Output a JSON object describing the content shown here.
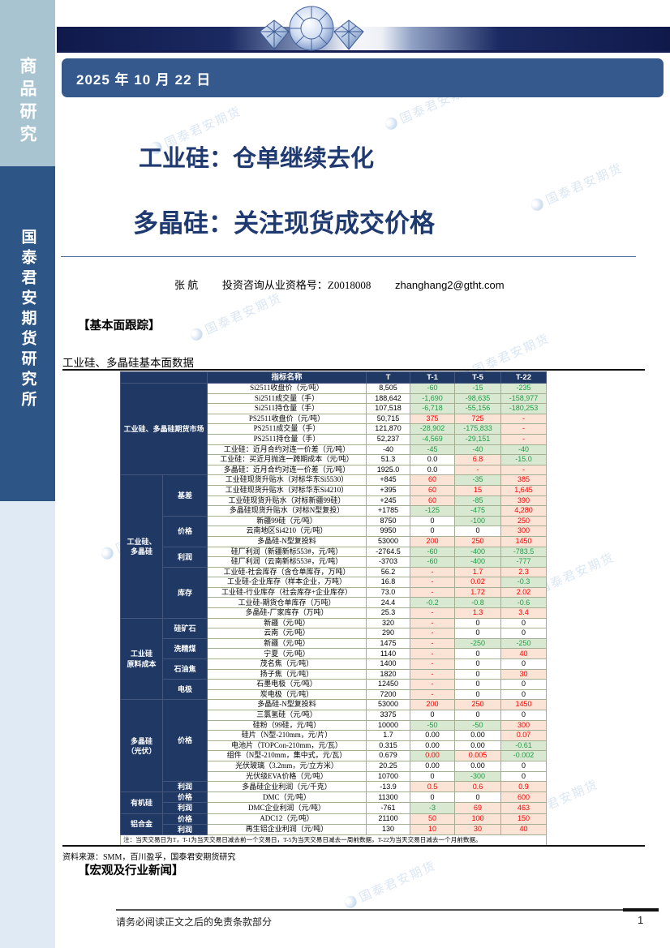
{
  "sidebar": {
    "top_label": "商品研究",
    "bottom_label": "国泰君安期货研究所"
  },
  "header": {
    "date": "2025 年 10 月 22 日"
  },
  "titles": {
    "title1": "工业硅：仓单继续去化",
    "title2": "多晶硅：关注现货成交价格"
  },
  "author": {
    "name": "张  航",
    "qualification": "投资咨询从业资格号：Z0018008",
    "email": "zhanghang2@gtht.com"
  },
  "sections": {
    "fundamentals": "【基本面跟踪】",
    "news": "【宏观及行业新闻】"
  },
  "watermark": {
    "text": "国泰君安期货"
  },
  "colors": {
    "navy": "#1f3864",
    "green_bg": "#d9e8d1",
    "green_text": "#1f9e48",
    "pink_bg": "#fbe3d5",
    "red_text": "#fe0000",
    "date_bar": "#35598d"
  },
  "table": {
    "title": "工业硅、多晶硅基本面数据",
    "headers": [
      "指标名称",
      "T",
      "T-1",
      "T-5",
      "T-22"
    ],
    "groups": [
      {
        "label": "工业硅、多晶硅期货市场",
        "merged": true,
        "subgroups": [
          {
            "label": "",
            "rows": [
              [
                "Si2511收盘价（元/吨）",
                "8,505",
                "-60",
                "g",
                "-15",
                "g",
                "-235",
                "g"
              ],
              [
                "Si2511成交量（手）",
                "188,642",
                "-1,690",
                "g",
                "-98,635",
                "g",
                "-158,977",
                "g"
              ],
              [
                "Si2511持仓量（手）",
                "107,518",
                "-6,718",
                "g",
                "-55,156",
                "g",
                "-180,253",
                "g"
              ],
              [
                "PS2511收盘价（元/吨）",
                "50,715",
                "375",
                "r",
                "725",
                "r",
                "-",
                "r"
              ],
              [
                "PS2511成交量（手）",
                "121,870",
                "-28,902",
                "g",
                "-175,833",
                "g",
                "-",
                "r"
              ],
              [
                "PS2511持仓量（手）",
                "52,237",
                "-4,569",
                "g",
                "-29,151",
                "g",
                "-",
                "r"
              ],
              [
                "工业硅：近月合约对连一价差（元/吨）",
                "-40",
                "-45",
                "g",
                "-40",
                "g",
                "-40",
                "g"
              ],
              [
                "工业硅：买近月抛连一跨期成本（元/吨）",
                "51.3",
                "0.0",
                "n",
                "6.8",
                "r",
                "-15.0",
                "g"
              ],
              [
                "多晶硅：近月合约对连一价差（元/吨）",
                "1925.0",
                "0.0",
                "n",
                "-",
                "r",
                "-",
                "r"
              ]
            ]
          }
        ]
      },
      {
        "label": "工业硅、\n多晶硅",
        "merged": false,
        "subgroups": [
          {
            "label": "基差",
            "rows": [
              [
                "工业硅现货升贴水（对标华东Si5530）",
                "+845",
                "60",
                "r",
                "-35",
                "g",
                "385",
                "r"
              ],
              [
                "工业硅现货升贴水（对标华东Si4210）",
                "+395",
                "60",
                "r",
                "15",
                "r",
                "1,645",
                "r"
              ],
              [
                "工业硅现货升贴水（对标新疆99硅）",
                "+245",
                "60",
                "r",
                "-85",
                "g",
                "390",
                "r"
              ],
              [
                "多晶硅现货升贴水（对标N型复投）",
                "+1785",
                "-125",
                "g",
                "-475",
                "g",
                "4,280",
                "r"
              ]
            ]
          },
          {
            "label": "价格",
            "rows": [
              [
                "新疆99硅（元/吨）",
                "8750",
                "0",
                "n",
                "-100",
                "g",
                "250",
                "r"
              ],
              [
                "云南地区Si4210（元/吨）",
                "9950",
                "0",
                "n",
                "0",
                "n",
                "300",
                "r"
              ],
              [
                "多晶硅-N型复投料",
                "53000",
                "200",
                "r",
                "250",
                "r",
                "1450",
                "r"
              ]
            ]
          },
          {
            "label": "利润",
            "rows": [
              [
                "硅厂利润（新疆新标553#，元/吨）",
                "-2764.5",
                "-60",
                "g",
                "-400",
                "g",
                "-783.5",
                "g"
              ],
              [
                "硅厂利润（云南新标553#，元/吨）",
                "-3703",
                "-60",
                "g",
                "-400",
                "g",
                "-777",
                "g"
              ]
            ]
          },
          {
            "label": "库存",
            "rows": [
              [
                "工业硅-社会库存（含仓单库存，万吨）",
                "56.2",
                "-",
                "r",
                "1.7",
                "r",
                "2.3",
                "r"
              ],
              [
                "工业硅-企业库存（样本企业，万吨）",
                "16.8",
                "-",
                "r",
                "0.02",
                "r",
                "-0.3",
                "g"
              ],
              [
                "工业硅-行业库存（社会库存+企业库存）",
                "73.0",
                "-",
                "r",
                "1.72",
                "r",
                "2.02",
                "r"
              ],
              [
                "工业硅-期货仓单库存（万吨）",
                "24.4",
                "-0.2",
                "g",
                "-0.8",
                "g",
                "-0.6",
                "g"
              ],
              [
                "多晶硅-厂家库存（万吨）",
                "25.3",
                "-",
                "r",
                "1.3",
                "r",
                "3.4",
                "r"
              ]
            ]
          }
        ]
      },
      {
        "label": "工业硅\n原料成本",
        "merged": false,
        "subgroups": [
          {
            "label": "硅矿石",
            "rows": [
              [
                "新疆（元/吨）",
                "320",
                "-",
                "r",
                "0",
                "n",
                "0",
                "n"
              ],
              [
                "云南（元/吨）",
                "290",
                "-",
                "r",
                "0",
                "n",
                "0",
                "n"
              ]
            ]
          },
          {
            "label": "洗精煤",
            "rows": [
              [
                "新疆（元/吨）",
                "1475",
                "-",
                "r",
                "-250",
                "g",
                "-250",
                "g"
              ],
              [
                "宁夏（元/吨）",
                "1140",
                "-",
                "r",
                "0",
                "n",
                "40",
                "r"
              ]
            ]
          },
          {
            "label": "石油焦",
            "rows": [
              [
                "茂名焦（元/吨）",
                "1400",
                "-",
                "r",
                "0",
                "n",
                "0",
                "n"
              ],
              [
                "扬子焦（元/吨）",
                "1820",
                "-",
                "r",
                "0",
                "n",
                "30",
                "r"
              ]
            ]
          },
          {
            "label": "电极",
            "rows": [
              [
                "石墨电极（元/吨）",
                "12450",
                "-",
                "r",
                "0",
                "n",
                "0",
                "n"
              ],
              [
                "炭电极（元/吨）",
                "7200",
                "-",
                "r",
                "0",
                "n",
                "0",
                "n"
              ]
            ]
          }
        ]
      },
      {
        "label": "多晶硅\n（光伏）",
        "merged": false,
        "subgroups": [
          {
            "label": "价格",
            "rows": [
              [
                "多晶硅-N型复投料",
                "53000",
                "200",
                "r",
                "250",
                "r",
                "1450",
                "r"
              ],
              [
                "三氯氢硅（元/吨）",
                "3375",
                "0",
                "n",
                "0",
                "n",
                "0",
                "n"
              ],
              [
                "硅粉（99硅，元/吨）",
                "10000",
                "-50",
                "g",
                "-50",
                "g",
                "300",
                "r"
              ],
              [
                "硅片（N型-210mm，元/片）",
                "1.7",
                "0.00",
                "n",
                "0.00",
                "n",
                "0.07",
                "r"
              ],
              [
                "电池片（TOPCon-210mm，元/瓦）",
                "0.315",
                "0.00",
                "n",
                "0.00",
                "n",
                "-0.61",
                "g"
              ],
              [
                "组件（N型-210mm，集中式，元/瓦）",
                "0.679",
                "0.00",
                "x",
                "0.005",
                "r",
                "-0.002",
                "g"
              ],
              [
                "光伏玻璃（3.2mm，元/立方米）",
                "20.25",
                "0.00",
                "n",
                "0.00",
                "n",
                "0",
                "n"
              ],
              [
                "光伏级EVA价格（元/吨）",
                "10700",
                "0",
                "n",
                "-300",
                "g",
                "0",
                "n"
              ]
            ]
          },
          {
            "label": "利润",
            "rows": [
              [
                "多晶硅企业利润（元/千克）",
                "-13.9",
                "0.5",
                "r",
                "0.6",
                "r",
                "0.9",
                "r"
              ]
            ]
          }
        ]
      },
      {
        "label": "有机硅",
        "merged": false,
        "subgroups": [
          {
            "label": "价格",
            "rows": [
              [
                "DMC（元/吨）",
                "11300",
                "0",
                "n",
                "0",
                "n",
                "600",
                "r"
              ]
            ]
          },
          {
            "label": "利润",
            "rows": [
              [
                "DMC企业利润（元/吨）",
                "-761",
                "-3",
                "g",
                "69",
                "r",
                "463",
                "r"
              ]
            ]
          }
        ]
      },
      {
        "label": "铝合金",
        "merged": false,
        "subgroups": [
          {
            "label": "价格",
            "rows": [
              [
                "ADC12（元/吨）",
                "21100",
                "50",
                "r",
                "100",
                "r",
                "150",
                "r"
              ]
            ]
          },
          {
            "label": "利润",
            "rows": [
              [
                "再生铝企业利润（元/吨）",
                "130",
                "10",
                "r",
                "30",
                "r",
                "40",
                "r"
              ]
            ]
          }
        ]
      }
    ],
    "note": "注：当天交易日为T，T-1为当天交易日减去前一个交易日，T-5为当天交易日减去一周前数据，T-22为当天交易日减去一个月前数据。",
    "source": "资料来源：SMM，百川盈孚，国泰君安期货研究"
  },
  "footer": {
    "disclaimer": "请务必阅读正文之后的免责条款部分",
    "page_number": "1"
  }
}
